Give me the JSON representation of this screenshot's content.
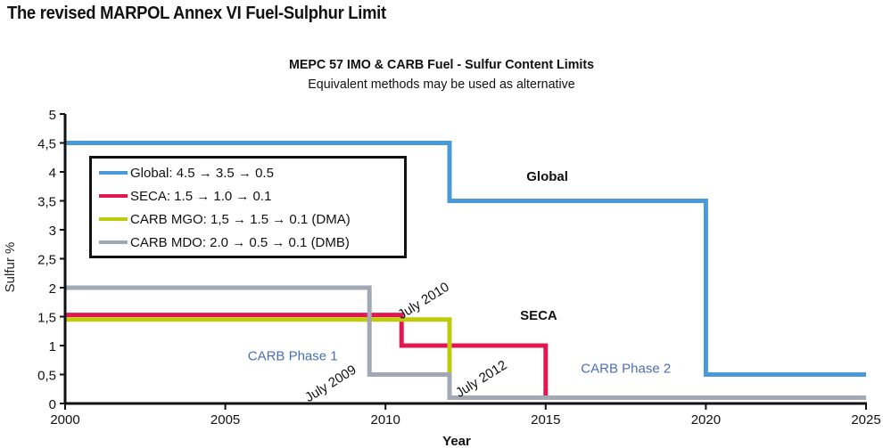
{
  "page_title": "The revised MARPOL Annex VI Fuel-Sulphur Limit",
  "chart_data": {
    "type": "line",
    "step": true,
    "title": "MEPC 57 IMO & CARB Fuel - Sulfur Content Limits",
    "subtitle": "Equivalent methods may be used as alternative",
    "xlabel": "Year",
    "ylabel": "Sulfur %",
    "xlim": [
      2000,
      2025
    ],
    "ylim": [
      0,
      5
    ],
    "x_ticks": [
      2000,
      2005,
      2010,
      2015,
      2020,
      2025
    ],
    "x_tick_labels": [
      "2000",
      "2005",
      "2010",
      "2015",
      "2020",
      "2025"
    ],
    "y_ticks": [
      0,
      0.5,
      1,
      1.5,
      2,
      2.5,
      3,
      3.5,
      4,
      4.5,
      5
    ],
    "y_tick_labels": [
      "0",
      "0,5",
      "1",
      "1,5",
      "2",
      "2,5",
      "3",
      "3,5",
      "4",
      "4,5",
      "5"
    ],
    "grid": false,
    "legend_position": "upper-left",
    "series": [
      {
        "name": "Global: 4.5 → 3.5 → 0.5",
        "key": "global",
        "color": "#4a9ad8",
        "points": [
          [
            2000,
            4.5
          ],
          [
            2012,
            4.5
          ],
          [
            2012,
            3.5
          ],
          [
            2020,
            3.5
          ],
          [
            2020,
            0.5
          ],
          [
            2025,
            0.5
          ]
        ]
      },
      {
        "name": "SECA: 1.5 → 1.0 → 0.1",
        "key": "seca",
        "color": "#e3174f",
        "points": [
          [
            2000,
            1.53
          ],
          [
            2010.5,
            1.53
          ],
          [
            2010.5,
            1.0
          ],
          [
            2015,
            1.0
          ],
          [
            2015,
            0.1
          ],
          [
            2025,
            0.1
          ]
        ]
      },
      {
        "name": "CARB MGO: 1,5 → 1.5 → 0.1 (DMA)",
        "key": "carb-mgo",
        "color": "#bfcb0a",
        "points": [
          [
            2000,
            1.45
          ],
          [
            2012,
            1.45
          ],
          [
            2012,
            0.1
          ],
          [
            2025,
            0.1
          ]
        ]
      },
      {
        "name": "CARB MDO: 2.0 → 0.5 → 0.1 (DMB)",
        "key": "carb-mdo",
        "color": "#a2a9b4",
        "points": [
          [
            2000,
            2.0
          ],
          [
            2009.5,
            2.0
          ],
          [
            2009.5,
            0.5
          ],
          [
            2012,
            0.5
          ],
          [
            2012,
            0.1
          ],
          [
            2025,
            0.1
          ]
        ]
      }
    ],
    "annotations": [
      {
        "text": "Global",
        "x": 2014.4,
        "y": 3.85,
        "style": "bold"
      },
      {
        "text": "SECA",
        "x": 2014.2,
        "y": 1.45,
        "style": "bold"
      },
      {
        "text": "CARB Phase 1",
        "x": 2005.7,
        "y": 0.75,
        "style": "blue"
      },
      {
        "text": "CARB Phase 2",
        "x": 2016.1,
        "y": 0.53,
        "style": "blue"
      },
      {
        "text": "July 2009",
        "x": 2007.6,
        "y": 0.02,
        "style": "date-rotated"
      },
      {
        "text": "July 2010",
        "x": 2010.5,
        "y": 1.45,
        "style": "date-rotated"
      },
      {
        "text": "July 2012",
        "x": 2012.3,
        "y": 0.1,
        "style": "date-rotated"
      }
    ]
  }
}
